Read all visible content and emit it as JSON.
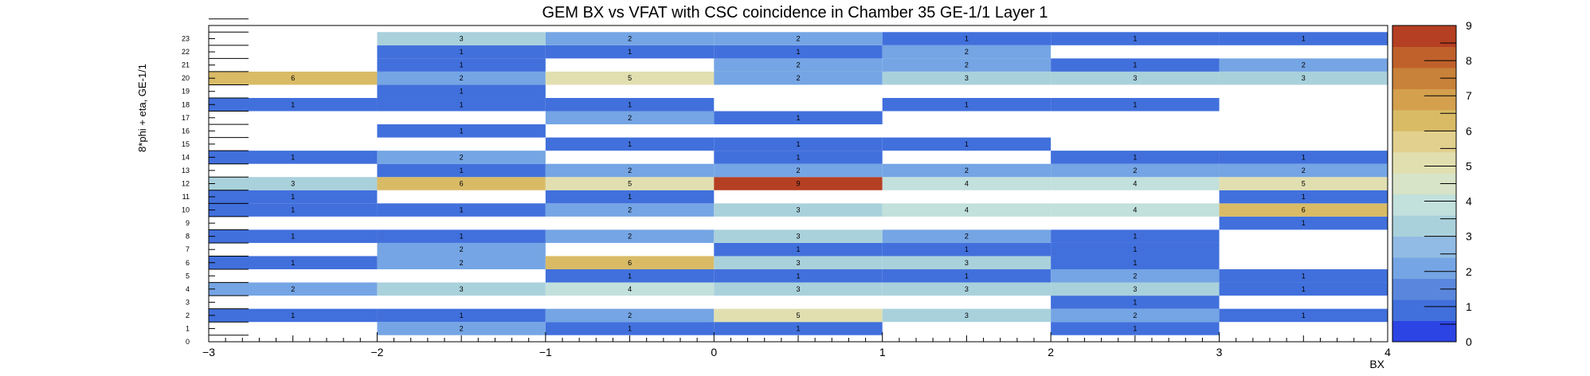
{
  "chart_data": {
    "type": "heatmap",
    "title": "GEM BX vs VFAT with CSC coincidence in Chamber 35 GE-1/1 Layer 1",
    "xlabel": "BX",
    "ylabel": "8*phi + eta, GE-1/1",
    "x_range": [
      -3,
      4
    ],
    "y_range": [
      0,
      24
    ],
    "x_bins": [
      -2.5,
      -1.5,
      -0.5,
      0.5,
      1.5,
      2.5,
      3.5
    ],
    "x_tick_labels": [
      "−3",
      "−2",
      "−1",
      "0",
      "1",
      "2",
      "3",
      "4"
    ],
    "y_tick_labels": [
      "0",
      "1",
      "2",
      "3",
      "4",
      "5",
      "6",
      "7",
      "8",
      "9",
      "10",
      "11",
      "12",
      "13",
      "14",
      "15",
      "16",
      "17",
      "18",
      "19",
      "20",
      "21",
      "22",
      "23"
    ],
    "z_range": [
      0,
      9
    ],
    "z_tick_labels": [
      "0",
      "1",
      "2",
      "3",
      "4",
      "5",
      "6",
      "7",
      "8",
      "9"
    ],
    "palette": [
      "#2c44e4",
      "#4170dc",
      "#5a87dd",
      "#75a5e4",
      "#91bbe4",
      "#a9d1dc",
      "#c2e0dc",
      "#d7e4c7",
      "#e1dfb0",
      "#e2d08e",
      "#d9bb66",
      "#d4a04e",
      "#c98239",
      "#c0612c",
      "#b53f22"
    ],
    "cells": [
      {
        "x": 0.5,
        "y": 1,
        "v": 1
      },
      {
        "x": -1.5,
        "y": 1,
        "v": 2
      },
      {
        "x": -0.5,
        "y": 1,
        "v": 1
      },
      {
        "x": 2.5,
        "y": 1,
        "v": 1
      },
      {
        "x": -2.5,
        "y": 2,
        "v": 1
      },
      {
        "x": -1.5,
        "y": 2,
        "v": 1
      },
      {
        "x": -0.5,
        "y": 2,
        "v": 2
      },
      {
        "x": 0.5,
        "y": 2,
        "v": 5
      },
      {
        "x": 1.5,
        "y": 2,
        "v": 3
      },
      {
        "x": 2.5,
        "y": 2,
        "v": 2
      },
      {
        "x": 3.5,
        "y": 2,
        "v": 1
      },
      {
        "x": 2.5,
        "y": 3,
        "v": 1
      },
      {
        "x": -2.5,
        "y": 4,
        "v": 2
      },
      {
        "x": -1.5,
        "y": 4,
        "v": 3
      },
      {
        "x": -0.5,
        "y": 4,
        "v": 4
      },
      {
        "x": 0.5,
        "y": 4,
        "v": 3
      },
      {
        "x": 1.5,
        "y": 4,
        "v": 3
      },
      {
        "x": 2.5,
        "y": 4,
        "v": 3
      },
      {
        "x": 3.5,
        "y": 4,
        "v": 1
      },
      {
        "x": -0.5,
        "y": 5,
        "v": 1
      },
      {
        "x": 0.5,
        "y": 5,
        "v": 1
      },
      {
        "x": 1.5,
        "y": 5,
        "v": 1
      },
      {
        "x": 2.5,
        "y": 5,
        "v": 2
      },
      {
        "x": 3.5,
        "y": 5,
        "v": 1
      },
      {
        "x": -2.5,
        "y": 6,
        "v": 1
      },
      {
        "x": -1.5,
        "y": 6,
        "v": 2
      },
      {
        "x": -0.5,
        "y": 6,
        "v": 6
      },
      {
        "x": 0.5,
        "y": 6,
        "v": 3
      },
      {
        "x": 1.5,
        "y": 6,
        "v": 3
      },
      {
        "x": 2.5,
        "y": 6,
        "v": 1
      },
      {
        "x": -1.5,
        "y": 7,
        "v": 2
      },
      {
        "x": 0.5,
        "y": 7,
        "v": 1
      },
      {
        "x": 1.5,
        "y": 7,
        "v": 1
      },
      {
        "x": 2.5,
        "y": 7,
        "v": 1
      },
      {
        "x": -2.5,
        "y": 8,
        "v": 1
      },
      {
        "x": -1.5,
        "y": 8,
        "v": 1
      },
      {
        "x": -0.5,
        "y": 8,
        "v": 2
      },
      {
        "x": 0.5,
        "y": 8,
        "v": 3
      },
      {
        "x": 1.5,
        "y": 8,
        "v": 2
      },
      {
        "x": 2.5,
        "y": 8,
        "v": 1
      },
      {
        "x": 3.5,
        "y": 9,
        "v": 1
      },
      {
        "x": -2.5,
        "y": 10,
        "v": 1
      },
      {
        "x": -1.5,
        "y": 10,
        "v": 1
      },
      {
        "x": -0.5,
        "y": 10,
        "v": 2
      },
      {
        "x": 0.5,
        "y": 10,
        "v": 3
      },
      {
        "x": 1.5,
        "y": 10,
        "v": 4
      },
      {
        "x": 2.5,
        "y": 10,
        "v": 4
      },
      {
        "x": 3.5,
        "y": 10,
        "v": 6
      },
      {
        "x": -2.5,
        "y": 11,
        "v": 1
      },
      {
        "x": -0.5,
        "y": 11,
        "v": 1
      },
      {
        "x": 3.5,
        "y": 11,
        "v": 1
      },
      {
        "x": -2.5,
        "y": 12,
        "v": 3
      },
      {
        "x": -1.5,
        "y": 12,
        "v": 6
      },
      {
        "x": -0.5,
        "y": 12,
        "v": 5
      },
      {
        "x": 0.5,
        "y": 12,
        "v": 9
      },
      {
        "x": 1.5,
        "y": 12,
        "v": 4
      },
      {
        "x": 2.5,
        "y": 12,
        "v": 4
      },
      {
        "x": 3.5,
        "y": 12,
        "v": 5
      },
      {
        "x": -1.5,
        "y": 13,
        "v": 1
      },
      {
        "x": -0.5,
        "y": 13,
        "v": 2
      },
      {
        "x": 0.5,
        "y": 13,
        "v": 2
      },
      {
        "x": 1.5,
        "y": 13,
        "v": 2
      },
      {
        "x": 2.5,
        "y": 13,
        "v": 2
      },
      {
        "x": 3.5,
        "y": 13,
        "v": 2
      },
      {
        "x": -2.5,
        "y": 14,
        "v": 1
      },
      {
        "x": -1.5,
        "y": 14,
        "v": 2
      },
      {
        "x": 0.5,
        "y": 14,
        "v": 1
      },
      {
        "x": 2.5,
        "y": 14,
        "v": 1
      },
      {
        "x": 3.5,
        "y": 14,
        "v": 1
      },
      {
        "x": -0.5,
        "y": 15,
        "v": 1
      },
      {
        "x": 0.5,
        "y": 15,
        "v": 1
      },
      {
        "x": 1.5,
        "y": 15,
        "v": 1
      },
      {
        "x": -1.5,
        "y": 16,
        "v": 1
      },
      {
        "x": -0.5,
        "y": 17,
        "v": 2
      },
      {
        "x": 0.5,
        "y": 17,
        "v": 1
      },
      {
        "x": -2.5,
        "y": 18,
        "v": 1
      },
      {
        "x": -1.5,
        "y": 18,
        "v": 1
      },
      {
        "x": -0.5,
        "y": 18,
        "v": 1
      },
      {
        "x": 1.5,
        "y": 18,
        "v": 1
      },
      {
        "x": 2.5,
        "y": 18,
        "v": 1
      },
      {
        "x": -1.5,
        "y": 19,
        "v": 1
      },
      {
        "x": -2.5,
        "y": 20,
        "v": 6
      },
      {
        "x": -1.5,
        "y": 20,
        "v": 2
      },
      {
        "x": -0.5,
        "y": 20,
        "v": 5
      },
      {
        "x": 0.5,
        "y": 20,
        "v": 2
      },
      {
        "x": 1.5,
        "y": 20,
        "v": 3
      },
      {
        "x": 2.5,
        "y": 20,
        "v": 3
      },
      {
        "x": 3.5,
        "y": 20,
        "v": 3
      },
      {
        "x": -1.5,
        "y": 21,
        "v": 1
      },
      {
        "x": 0.5,
        "y": 21,
        "v": 2
      },
      {
        "x": 1.5,
        "y": 21,
        "v": 2
      },
      {
        "x": 2.5,
        "y": 21,
        "v": 1
      },
      {
        "x": 3.5,
        "y": 21,
        "v": 2
      },
      {
        "x": -1.5,
        "y": 22,
        "v": 1
      },
      {
        "x": -0.5,
        "y": 22,
        "v": 1
      },
      {
        "x": 0.5,
        "y": 22,
        "v": 1
      },
      {
        "x": 1.5,
        "y": 22,
        "v": 2
      },
      {
        "x": -1.5,
        "y": 23,
        "v": 3
      },
      {
        "x": -0.5,
        "y": 23,
        "v": 2
      },
      {
        "x": 0.5,
        "y": 23,
        "v": 2
      },
      {
        "x": 1.5,
        "y": 23,
        "v": 1
      },
      {
        "x": 2.5,
        "y": 23,
        "v": 1
      },
      {
        "x": 3.5,
        "y": 23,
        "v": 1
      }
    ]
  }
}
